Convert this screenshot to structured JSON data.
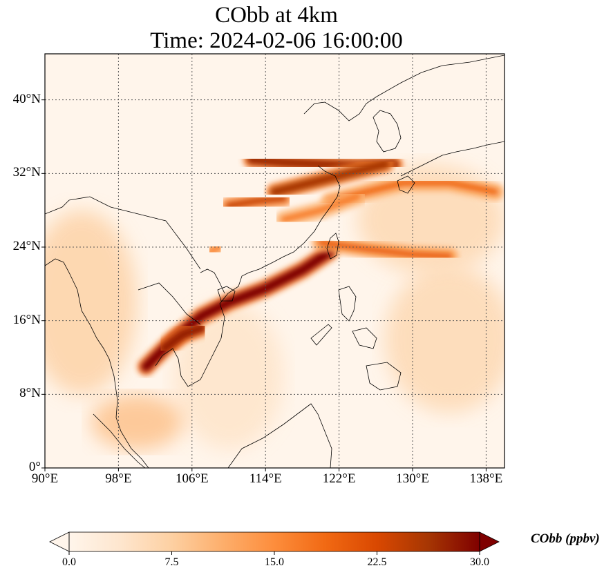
{
  "chart_data": {
    "type": "heatmap",
    "title": "CObb at 4km",
    "subtitle": "Time: 2024-02-06 16:00:00",
    "x_ticks": [
      "90°E",
      "98°E",
      "106°E",
      "114°E",
      "122°E",
      "130°E",
      "138°E"
    ],
    "x_tick_values": [
      90,
      98,
      106,
      114,
      122,
      130,
      138
    ],
    "y_ticks": [
      "0°",
      "8°N",
      "16°N",
      "24°N",
      "32°N",
      "40°N"
    ],
    "y_tick_values": [
      0,
      8,
      16,
      24,
      32,
      40
    ],
    "xlim": [
      90,
      140
    ],
    "ylim": [
      0,
      45
    ],
    "grid": true,
    "colorbar": {
      "label": "CObb (ppbv)",
      "ticks": [
        "0.0",
        "7.5",
        "15.0",
        "22.5",
        "30.0"
      ],
      "tick_values": [
        0,
        7.5,
        15,
        22.5,
        30
      ],
      "range": [
        0,
        30
      ],
      "extend": "both",
      "colors": [
        "#fff5eb",
        "#fee6ce",
        "#fdd0a2",
        "#fdae6b",
        "#fd8d3c",
        "#f16913",
        "#d94801",
        "#a63603",
        "#7f0000"
      ]
    },
    "plumes": [
      {
        "path": [
          [
            101,
            11
          ],
          [
            104,
            14
          ],
          [
            107,
            16.5
          ],
          [
            110,
            18
          ],
          [
            114,
            19.5
          ],
          [
            118,
            21.5
          ],
          [
            121,
            23.5
          ]
        ],
        "value": 30
      },
      {
        "path": [
          [
            103,
            13
          ],
          [
            105,
            14.5
          ],
          [
            107,
            15.2
          ]
        ],
        "value": 28
      },
      {
        "path": [
          [
            112.5,
            33.5
          ],
          [
            116,
            33.2
          ],
          [
            120,
            33
          ],
          [
            124,
            32.8
          ],
          [
            128,
            33
          ]
        ],
        "value": 27
      },
      {
        "path": [
          [
            115,
            30
          ],
          [
            119,
            31
          ],
          [
            123,
            32
          ],
          [
            127,
            33
          ]
        ],
        "value": 26
      },
      {
        "path": [
          [
            110,
            28.5
          ],
          [
            113,
            29
          ],
          [
            116,
            29.3
          ]
        ],
        "value": 24
      },
      {
        "path": [
          [
            120,
            24.5
          ],
          [
            125,
            23.8
          ],
          [
            130,
            23.2
          ],
          [
            134,
            23
          ]
        ],
        "value": 20
      },
      {
        "path": [
          [
            121,
            29
          ],
          [
            125,
            30
          ],
          [
            129,
            31
          ],
          [
            134,
            31
          ],
          [
            139,
            30
          ]
        ],
        "value": 19
      },
      {
        "path": [
          [
            116,
            27
          ],
          [
            120,
            28
          ],
          [
            124,
            29.5
          ]
        ],
        "value": 17
      },
      {
        "path": [
          [
            108,
            23.5
          ],
          [
            109,
            24
          ]
        ],
        "value": 16
      }
    ],
    "background_field": [
      {
        "center": [
          94,
          18
        ],
        "radius": [
          6,
          10
        ],
        "value": 7
      },
      {
        "center": [
          134,
          14
        ],
        "radius": [
          7,
          8
        ],
        "value": 6
      },
      {
        "center": [
          110,
          10
        ],
        "radius": [
          6,
          8
        ],
        "value": 4
      },
      {
        "center": [
          100,
          5
        ],
        "radius": [
          5,
          3
        ],
        "value": 9
      },
      {
        "center": [
          132,
          27
        ],
        "radius": [
          8,
          6
        ],
        "value": 6
      }
    ]
  }
}
